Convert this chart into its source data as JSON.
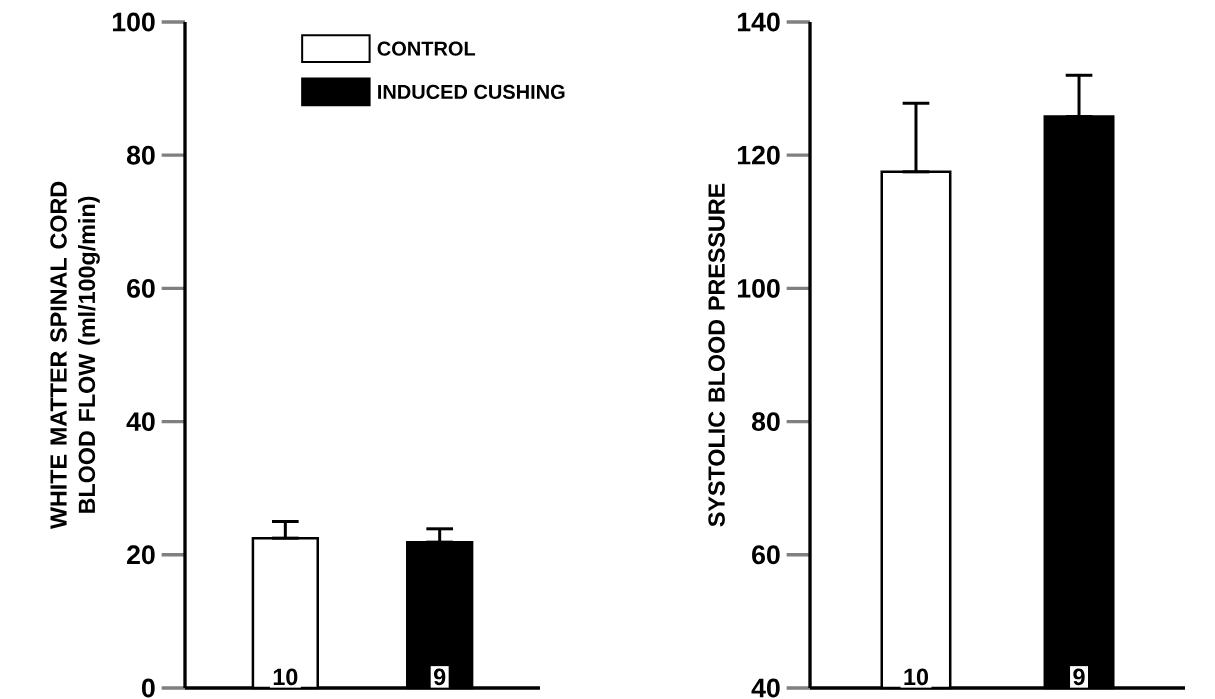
{
  "chart_data": [
    {
      "type": "bar",
      "ylabel": "WHITE MATTER SPINAL CORD BLOOD FLOW (ml/100g/min)",
      "categories": [
        null
      ],
      "ylim": [
        0,
        100
      ],
      "yticks": [
        0,
        20,
        40,
        60,
        80,
        100
      ],
      "legend": "top",
      "grid": false,
      "series": [
        {
          "name": "CONTROL",
          "color": "#ffffff",
          "values": [
            22.5
          ],
          "errors": [
            [
              22.5,
              25.0
            ]
          ]
        },
        {
          "name": "INDUCED CUSHING",
          "color": "#000000",
          "values": [
            21.9
          ],
          "errors": [
            [
              21.9,
              23.9
            ]
          ]
        }
      ],
      "annotations": [
        "10",
        "9"
      ]
    },
    {
      "type": "bar",
      "ylabel": "SYSTOLIC BLOOD PRESSURE",
      "categories": [
        null
      ],
      "ylim": [
        40,
        140
      ],
      "yticks": [
        40,
        60,
        80,
        100,
        120,
        140
      ],
      "grid": false,
      "series": [
        {
          "color": "#ffffff",
          "values": [
            117.5
          ],
          "errors": [
            [
              117.5,
              127.8
            ]
          ]
        },
        {
          "color": "#000000",
          "values": [
            125.8
          ],
          "errors": [
            [
              125.8,
              132.0
            ]
          ]
        }
      ],
      "annotations": [
        "10",
        "9"
      ]
    }
  ]
}
